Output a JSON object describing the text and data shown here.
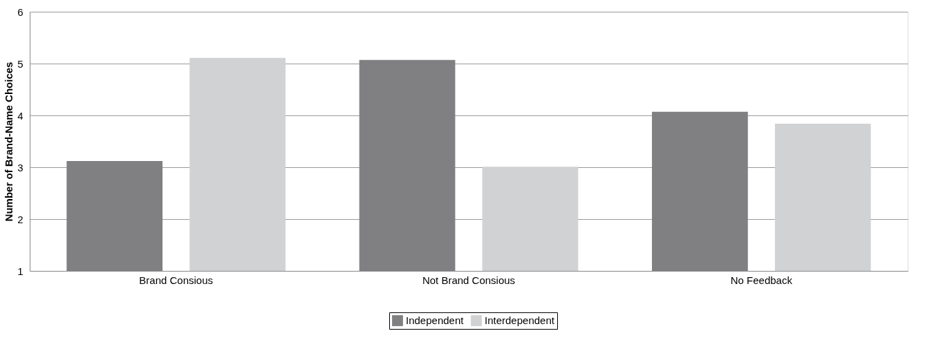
{
  "chart_data": {
    "type": "bar",
    "ylabel": "Number of Brand-Name Choices",
    "categories": [
      "Brand Consious",
      "Not Brand Consious",
      "No Feedback"
    ],
    "series": [
      {
        "name": "Independent",
        "color": "#808083",
        "values": [
          3.12,
          5.07,
          4.07
        ]
      },
      {
        "name": "Interdependent",
        "color": "#d1d2d4",
        "values": [
          5.11,
          3.01,
          3.84
        ]
      }
    ],
    "ylim": [
      1,
      6
    ],
    "yticks": [
      1,
      2,
      3,
      4,
      5,
      6
    ],
    "grid": "y",
    "legend": "bottom"
  }
}
